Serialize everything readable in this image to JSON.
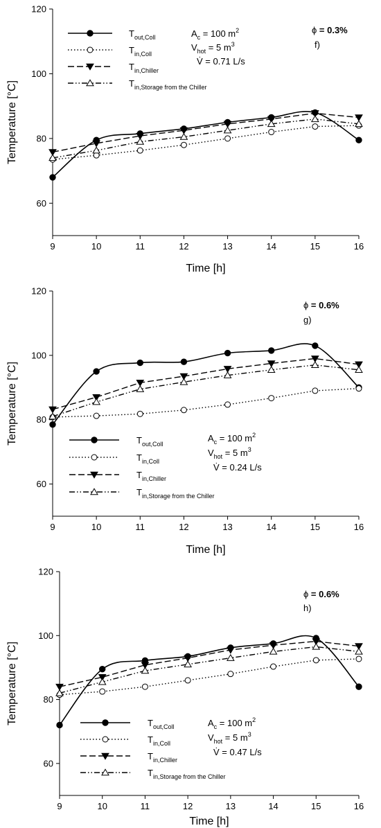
{
  "chart_data": [
    {
      "type": "line",
      "panel_label": "f)",
      "phi_symbol": "ϕ",
      "phi_value": "= 0.3%",
      "xlabel": "Time [h]",
      "ylabel": "Temperature [°C]",
      "xlim": [
        9,
        16
      ],
      "ylim": [
        50,
        120
      ],
      "x_ticks": [
        9,
        10,
        11,
        12,
        13,
        14,
        15,
        16
      ],
      "y_ticks": [
        60,
        80,
        100,
        120
      ],
      "legend_position": "top-left",
      "annotations": [
        {
          "main": "A",
          "sub": "c",
          "rest": " = 100 m",
          "sup": "2"
        },
        {
          "main": "V",
          "sub": "hot",
          "rest": " = 5 m",
          "sup": "3"
        },
        {
          "main": "V̇",
          "sub": "",
          "rest": "  = 0.71 L/s",
          "sup": ""
        }
      ],
      "x": [
        9,
        10,
        11,
        12,
        13,
        14,
        15,
        16
      ],
      "series": [
        {
          "name": "T",
          "name_sub": "out,Coll",
          "style": "solid",
          "marker": "filled-circle",
          "smooth": true,
          "values": [
            68,
            79.5,
            81.5,
            83,
            85,
            86.5,
            88,
            79.5
          ]
        },
        {
          "name": "T",
          "name_sub": "in,Coll",
          "style": "dotted",
          "marker": "open-circle",
          "smooth": false,
          "values": [
            73.5,
            74.8,
            76.3,
            78,
            80,
            82,
            83.7,
            84
          ]
        },
        {
          "name": "T",
          "name_sub": "in,Chiller",
          "style": "dashed",
          "marker": "filled-triangle-down",
          "smooth": false,
          "values": [
            75.8,
            78.5,
            80.8,
            82.5,
            84.5,
            86,
            87.8,
            86.5
          ]
        },
        {
          "name": "T",
          "name_sub": "in,Storage from the Chiller",
          "style": "dashdotdot",
          "marker": "open-triangle-up",
          "smooth": false,
          "values": [
            74,
            76.3,
            79,
            80.5,
            82.5,
            84.5,
            86,
            84.5
          ]
        }
      ]
    },
    {
      "type": "line",
      "panel_label": "g)",
      "phi_symbol": "ϕ",
      "phi_value": "= 0.6%",
      "xlabel": "Time [h]",
      "ylabel": "Temperature [°C]",
      "xlim": [
        9,
        16
      ],
      "ylim": [
        50,
        120
      ],
      "x_ticks": [
        9,
        10,
        11,
        12,
        13,
        14,
        15,
        16
      ],
      "y_ticks": [
        60,
        80,
        100,
        120
      ],
      "legend_position": "bottom-left",
      "annotations": [
        {
          "main": "A",
          "sub": "c",
          "rest": " = 100 m",
          "sup": "2"
        },
        {
          "main": "V",
          "sub": "hot",
          "rest": " = 5 m",
          "sup": "3"
        },
        {
          "main": "V̇",
          "sub": "",
          "rest": "  = 0.24 L/s",
          "sup": ""
        }
      ],
      "x": [
        9,
        10,
        11,
        12,
        13,
        14,
        15,
        16
      ],
      "series": [
        {
          "name": "T",
          "name_sub": "out,Coll",
          "style": "solid",
          "marker": "filled-circle",
          "smooth": true,
          "values": [
            78.5,
            95,
            97.7,
            98,
            100.7,
            101.5,
            103,
            90
          ]
        },
        {
          "name": "T",
          "name_sub": "in,Coll",
          "style": "dotted",
          "marker": "open-circle",
          "smooth": false,
          "values": [
            80.8,
            81.2,
            81.8,
            83,
            84.7,
            86.7,
            89,
            89.7
          ]
        },
        {
          "name": "T",
          "name_sub": "in,Chiller",
          "style": "dashed",
          "marker": "filled-triangle-down",
          "smooth": false,
          "values": [
            83.2,
            87,
            91.5,
            93.5,
            95.8,
            97.5,
            99,
            97.2
          ]
        },
        {
          "name": "T",
          "name_sub": "in,Storage from the Chiller",
          "style": "dashdotdot",
          "marker": "open-triangle-up",
          "smooth": false,
          "values": [
            81,
            85.5,
            89.5,
            91.7,
            93.8,
            95.5,
            97,
            95.5
          ]
        }
      ]
    },
    {
      "type": "line",
      "panel_label": "h)",
      "phi_symbol": "ϕ",
      "phi_value": "= 0.6%",
      "xlabel": "Time [h]",
      "ylabel": "Temperature [°C]",
      "xlim": [
        9,
        16
      ],
      "ylim": [
        50,
        120
      ],
      "x_ticks": [
        9,
        10,
        11,
        12,
        13,
        14,
        15,
        16
      ],
      "y_ticks": [
        60,
        80,
        100,
        120
      ],
      "legend_position": "bottom-center",
      "annotations": [
        {
          "main": "A",
          "sub": "c",
          "rest": " = 100 m",
          "sup": "2"
        },
        {
          "main": "V",
          "sub": "hot",
          "rest": " = 5 m",
          "sup": "3"
        },
        {
          "main": "V̇",
          "sub": "",
          "rest": "  = 0.47 L/s",
          "sup": ""
        }
      ],
      "x": [
        9,
        10,
        11,
        12,
        13,
        14,
        15,
        16
      ],
      "series": [
        {
          "name": "T",
          "name_sub": "out,Coll",
          "style": "solid",
          "marker": "filled-circle",
          "smooth": true,
          "values": [
            72,
            89.5,
            92.2,
            93.5,
            96.2,
            97.5,
            99.2,
            84
          ]
        },
        {
          "name": "T",
          "name_sub": "in,Coll",
          "style": "dotted",
          "marker": "open-circle",
          "smooth": false,
          "values": [
            81.5,
            82.5,
            84,
            86,
            88,
            90.3,
            92.3,
            92.7
          ]
        },
        {
          "name": "T",
          "name_sub": "in,Chiller",
          "style": "dashed",
          "marker": "filled-triangle-down",
          "smooth": false,
          "values": [
            84,
            87,
            90.8,
            93,
            95.5,
            97,
            98.2,
            96.7
          ]
        },
        {
          "name": "T",
          "name_sub": "in,Storage from the Chiller",
          "style": "dashdotdot",
          "marker": "open-triangle-up",
          "smooth": false,
          "values": [
            82,
            85.5,
            89,
            91,
            93,
            95,
            96.5,
            95
          ]
        }
      ]
    }
  ]
}
